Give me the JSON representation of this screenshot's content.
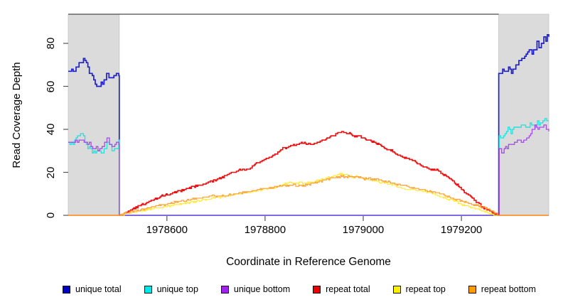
{
  "chart_data": {
    "type": "line",
    "title": "",
    "xlabel": "Coordinate in Reference Genome",
    "ylabel": "Read Coverage Depth",
    "xlim": [
      1978399,
      1979378
    ],
    "ylim": [
      0,
      93
    ],
    "x_ticks": [
      1978600,
      1978800,
      1979000,
      1979200
    ],
    "y_ticks": [
      0,
      20,
      40,
      60,
      80
    ],
    "grid": false,
    "legend_position": "bottom",
    "shaded_regions": [
      {
        "x_start": 1978399,
        "x_end": 1978503,
        "color": "#DBDBDB"
      },
      {
        "x_start": 1979276,
        "x_end": 1979378,
        "color": "#DBDBDB"
      }
    ],
    "series": [
      {
        "name": "unique total",
        "color": "#2020CF",
        "points": [
          [
            1978399,
            67
          ],
          [
            1978406,
            68
          ],
          [
            1978412,
            66
          ],
          [
            1978418,
            70
          ],
          [
            1978424,
            71
          ],
          [
            1978430,
            73
          ],
          [
            1978436,
            71
          ],
          [
            1978442,
            67
          ],
          [
            1978448,
            64
          ],
          [
            1978454,
            61
          ],
          [
            1978460,
            60
          ],
          [
            1978466,
            61
          ],
          [
            1978472,
            63
          ],
          [
            1978477,
            66
          ],
          [
            1978482,
            64
          ],
          [
            1978487,
            65
          ],
          [
            1978492,
            64
          ],
          [
            1978497,
            65
          ],
          [
            1978502,
            65
          ],
          [
            1978503,
            0
          ],
          [
            1979276,
            0
          ],
          [
            1979276,
            66
          ],
          [
            1979284,
            67
          ],
          [
            1979290,
            66
          ],
          [
            1979296,
            68
          ],
          [
            1979302,
            67
          ],
          [
            1979308,
            69
          ],
          [
            1979314,
            71
          ],
          [
            1979320,
            72
          ],
          [
            1979326,
            73
          ],
          [
            1979332,
            75
          ],
          [
            1979338,
            77
          ],
          [
            1979344,
            76
          ],
          [
            1979350,
            78
          ],
          [
            1979354,
            80
          ],
          [
            1979358,
            78
          ],
          [
            1979363,
            81
          ],
          [
            1979368,
            83
          ],
          [
            1979372,
            82
          ],
          [
            1979378,
            84
          ]
        ]
      },
      {
        "name": "unique top",
        "color": "#2BE0DD",
        "points": [
          [
            1978399,
            34
          ],
          [
            1978406,
            33
          ],
          [
            1978412,
            35
          ],
          [
            1978418,
            37
          ],
          [
            1978424,
            38
          ],
          [
            1978430,
            36
          ],
          [
            1978436,
            33
          ],
          [
            1978442,
            31
          ],
          [
            1978448,
            30
          ],
          [
            1978454,
            29
          ],
          [
            1978460,
            30
          ],
          [
            1978466,
            29
          ],
          [
            1978472,
            31
          ],
          [
            1978478,
            33
          ],
          [
            1978483,
            32
          ],
          [
            1978488,
            31
          ],
          [
            1978493,
            32
          ],
          [
            1978498,
            31
          ],
          [
            1978502,
            34
          ],
          [
            1978503,
            0
          ],
          [
            1979277,
            0
          ],
          [
            1979277,
            36
          ],
          [
            1979283,
            37
          ],
          [
            1979289,
            38
          ],
          [
            1979295,
            40
          ],
          [
            1979301,
            39
          ],
          [
            1979307,
            40
          ],
          [
            1979313,
            41
          ],
          [
            1979319,
            40
          ],
          [
            1979325,
            42
          ],
          [
            1979331,
            41
          ],
          [
            1979337,
            42
          ],
          [
            1979343,
            43
          ],
          [
            1979349,
            42
          ],
          [
            1979355,
            43
          ],
          [
            1979361,
            42
          ],
          [
            1979366,
            43
          ],
          [
            1979370,
            45
          ],
          [
            1979374,
            44
          ],
          [
            1979378,
            45
          ]
        ]
      },
      {
        "name": "unique bottom",
        "color": "#A44CE6",
        "points": [
          [
            1978399,
            34
          ],
          [
            1978407,
            34
          ],
          [
            1978414,
            35
          ],
          [
            1978421,
            34
          ],
          [
            1978428,
            35
          ],
          [
            1978435,
            34
          ],
          [
            1978442,
            33
          ],
          [
            1978449,
            32
          ],
          [
            1978456,
            31
          ],
          [
            1978463,
            31
          ],
          [
            1978468,
            32
          ],
          [
            1978473,
            34
          ],
          [
            1978478,
            35
          ],
          [
            1978483,
            34
          ],
          [
            1978488,
            33
          ],
          [
            1978494,
            33
          ],
          [
            1978500,
            34
          ],
          [
            1978502,
            33
          ],
          [
            1978503,
            0
          ],
          [
            1979277,
            0
          ],
          [
            1979277,
            31
          ],
          [
            1979282,
            29
          ],
          [
            1979287,
            31
          ],
          [
            1979293,
            32
          ],
          [
            1979299,
            33
          ],
          [
            1979305,
            33
          ],
          [
            1979311,
            34
          ],
          [
            1979317,
            35
          ],
          [
            1979322,
            34
          ],
          [
            1979327,
            36
          ],
          [
            1979333,
            35
          ],
          [
            1979338,
            37
          ],
          [
            1979344,
            40
          ],
          [
            1979350,
            41
          ],
          [
            1979356,
            40
          ],
          [
            1979362,
            41
          ],
          [
            1979368,
            41
          ],
          [
            1979373,
            40
          ],
          [
            1979378,
            39
          ]
        ]
      },
      {
        "name": "repeat total",
        "color": "#EE1111",
        "points": [
          [
            1978399,
            0
          ],
          [
            1978503,
            0
          ],
          [
            1978515,
            1
          ],
          [
            1978530,
            3
          ],
          [
            1978550,
            5
          ],
          [
            1978570,
            7
          ],
          [
            1978590,
            9
          ],
          [
            1978605,
            10
          ],
          [
            1978620,
            11
          ],
          [
            1978635,
            12
          ],
          [
            1978650,
            13
          ],
          [
            1978665,
            14
          ],
          [
            1978680,
            15
          ],
          [
            1978695,
            16
          ],
          [
            1978705,
            17
          ],
          [
            1978715,
            18
          ],
          [
            1978725,
            19
          ],
          [
            1978735,
            20
          ],
          [
            1978748,
            21
          ],
          [
            1978760,
            21
          ],
          [
            1978770,
            22
          ],
          [
            1978780,
            24
          ],
          [
            1978790,
            25
          ],
          [
            1978800,
            26
          ],
          [
            1978812,
            27
          ],
          [
            1978824,
            29
          ],
          [
            1978836,
            31
          ],
          [
            1978848,
            32
          ],
          [
            1978858,
            33
          ],
          [
            1978868,
            33
          ],
          [
            1978878,
            34
          ],
          [
            1978888,
            33
          ],
          [
            1978898,
            33
          ],
          [
            1978908,
            34
          ],
          [
            1978918,
            35
          ],
          [
            1978928,
            36
          ],
          [
            1978938,
            37
          ],
          [
            1978948,
            38
          ],
          [
            1978956,
            39
          ],
          [
            1978964,
            38
          ],
          [
            1978972,
            38
          ],
          [
            1978980,
            37
          ],
          [
            1978990,
            37
          ],
          [
            1979000,
            36
          ],
          [
            1979010,
            35
          ],
          [
            1979022,
            34
          ],
          [
            1979034,
            33
          ],
          [
            1979046,
            31
          ],
          [
            1979058,
            30
          ],
          [
            1979070,
            28
          ],
          [
            1979082,
            27
          ],
          [
            1979094,
            26
          ],
          [
            1979106,
            25
          ],
          [
            1979118,
            23
          ],
          [
            1979130,
            22
          ],
          [
            1979142,
            21
          ],
          [
            1979152,
            21
          ],
          [
            1979162,
            19
          ],
          [
            1979172,
            18
          ],
          [
            1979182,
            16
          ],
          [
            1979192,
            14
          ],
          [
            1979202,
            12
          ],
          [
            1979210,
            10
          ],
          [
            1979218,
            9
          ],
          [
            1979226,
            7
          ],
          [
            1979234,
            6
          ],
          [
            1979242,
            4
          ],
          [
            1979250,
            3
          ],
          [
            1979258,
            2
          ],
          [
            1979266,
            1
          ],
          [
            1979276,
            0
          ],
          [
            1979378,
            0
          ]
        ]
      },
      {
        "name": "repeat top",
        "color": "#FFE93B",
        "points": [
          [
            1978399,
            0
          ],
          [
            1978503,
            0
          ],
          [
            1978520,
            1
          ],
          [
            1978545,
            2
          ],
          [
            1978570,
            3
          ],
          [
            1978595,
            4
          ],
          [
            1978620,
            5
          ],
          [
            1978645,
            6
          ],
          [
            1978670,
            7
          ],
          [
            1978695,
            8
          ],
          [
            1978720,
            9
          ],
          [
            1978745,
            10
          ],
          [
            1978770,
            11
          ],
          [
            1978795,
            12
          ],
          [
            1978820,
            13
          ],
          [
            1978845,
            15
          ],
          [
            1978865,
            15
          ],
          [
            1978885,
            15
          ],
          [
            1978905,
            16
          ],
          [
            1978920,
            17
          ],
          [
            1978935,
            18
          ],
          [
            1978950,
            19
          ],
          [
            1978960,
            19
          ],
          [
            1978975,
            18
          ],
          [
            1978990,
            18
          ],
          [
            1979005,
            17
          ],
          [
            1979025,
            16
          ],
          [
            1979045,
            15
          ],
          [
            1979065,
            14
          ],
          [
            1979085,
            12
          ],
          [
            1979105,
            12
          ],
          [
            1979125,
            11
          ],
          [
            1979145,
            10
          ],
          [
            1979165,
            8
          ],
          [
            1979185,
            7
          ],
          [
            1979200,
            5
          ],
          [
            1979215,
            4
          ],
          [
            1979230,
            3
          ],
          [
            1979245,
            2
          ],
          [
            1979258,
            1
          ],
          [
            1979268,
            0
          ],
          [
            1979276,
            0
          ],
          [
            1979378,
            0
          ]
        ]
      },
      {
        "name": "repeat bottom",
        "color": "#FFA033",
        "points": [
          [
            1978399,
            0
          ],
          [
            1978503,
            0
          ],
          [
            1978515,
            1
          ],
          [
            1978535,
            2
          ],
          [
            1978555,
            3
          ],
          [
            1978575,
            4
          ],
          [
            1978595,
            5
          ],
          [
            1978615,
            6
          ],
          [
            1978640,
            7
          ],
          [
            1978665,
            8
          ],
          [
            1978690,
            9
          ],
          [
            1978715,
            9
          ],
          [
            1978740,
            10
          ],
          [
            1978765,
            11
          ],
          [
            1978790,
            12
          ],
          [
            1978815,
            13
          ],
          [
            1978840,
            14
          ],
          [
            1978860,
            14
          ],
          [
            1978880,
            14
          ],
          [
            1978900,
            15
          ],
          [
            1978915,
            16
          ],
          [
            1978930,
            17
          ],
          [
            1978945,
            18
          ],
          [
            1978958,
            18
          ],
          [
            1978972,
            18
          ],
          [
            1978986,
            18
          ],
          [
            1979000,
            17
          ],
          [
            1979020,
            17
          ],
          [
            1979040,
            16
          ],
          [
            1979060,
            15
          ],
          [
            1979080,
            14
          ],
          [
            1979100,
            13
          ],
          [
            1979120,
            12
          ],
          [
            1979140,
            11
          ],
          [
            1979160,
            10
          ],
          [
            1979180,
            8
          ],
          [
            1979195,
            7
          ],
          [
            1979210,
            6
          ],
          [
            1979225,
            5
          ],
          [
            1979240,
            4
          ],
          [
            1979252,
            3
          ],
          [
            1979262,
            2
          ],
          [
            1979270,
            1
          ],
          [
            1979276,
            0
          ],
          [
            1979378,
            0
          ]
        ]
      }
    ],
    "legend": [
      {
        "label": "unique total",
        "color": "#0000CD"
      },
      {
        "label": "unique top",
        "color": "#00E8E8"
      },
      {
        "label": "unique bottom",
        "color": "#A020F0"
      },
      {
        "label": "repeat total",
        "color": "#EE0000"
      },
      {
        "label": "repeat top",
        "color": "#FFF000"
      },
      {
        "label": "repeat bottom",
        "color": "#FF9C00"
      }
    ]
  }
}
